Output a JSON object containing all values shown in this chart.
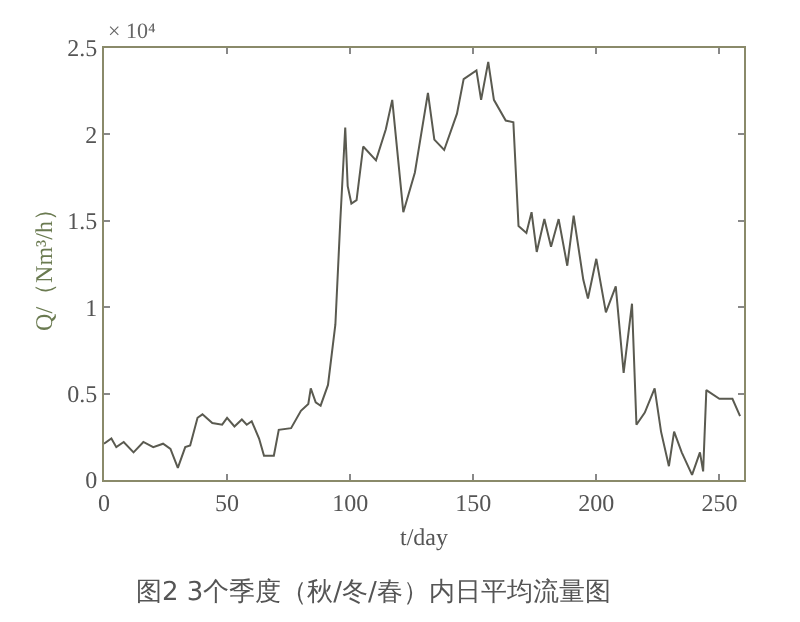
{
  "chart_data": {
    "type": "line",
    "title": "图2 3个季度（秋/冬/春）内日平均流量图",
    "xlabel": "t/day",
    "ylabel": "Q/（Nm³/h）",
    "annotations": [
      "× 10⁴"
    ],
    "xlim": [
      0,
      260
    ],
    "xticks": [
      0,
      50,
      100,
      150,
      200,
      250
    ],
    "ylim": [
      0,
      2.5
    ],
    "yticks": [
      0,
      0.5,
      1,
      1.5,
      2,
      2.5
    ],
    "marker": "none",
    "line_style": "solid",
    "series": [
      {
        "color": "#5a5a50",
        "x": [
          0,
          3,
          5,
          8,
          12,
          16,
          20,
          24,
          27,
          30,
          33,
          35,
          38,
          40,
          44,
          48,
          50,
          53,
          56,
          58,
          60,
          63,
          65,
          69,
          71,
          76,
          80,
          83,
          84,
          86,
          88,
          91,
          94,
          96,
          98,
          99,
          100.5,
          102.6,
          105.3,
          110.5,
          114.5,
          117.1,
          121.6,
          126.3,
          131.6,
          134.2,
          138.2,
          143.4,
          146.1,
          151.3,
          153.2,
          156.1,
          158.4,
          163.2,
          166.3,
          168.4,
          171.6,
          173.7,
          175.8,
          178.9,
          181.6,
          184.7,
          188.2,
          190.8,
          194.7,
          196.6,
          200,
          203.9,
          207.9,
          211.1,
          214.5,
          216.3,
          219.7,
          223.7,
          226.3,
          229.5,
          231.6,
          234.7,
          238.9,
          242.1,
          243.4,
          244.7,
          250,
          255.3,
          258.4
        ],
        "values": [
          0.21,
          0.24,
          0.19,
          0.22,
          0.16,
          0.22,
          0.19,
          0.21,
          0.18,
          0.07,
          0.19,
          0.2,
          0.36,
          0.38,
          0.33,
          0.32,
          0.36,
          0.31,
          0.35,
          0.32,
          0.34,
          0.24,
          0.14,
          0.14,
          0.29,
          0.3,
          0.4,
          0.44,
          0.53,
          0.45,
          0.43,
          0.55,
          0.9,
          1.5,
          2.04,
          1.7,
          1.6,
          1.62,
          1.93,
          1.85,
          2.03,
          2.2,
          1.55,
          1.78,
          2.24,
          1.97,
          1.91,
          2.12,
          2.32,
          2.37,
          2.2,
          2.42,
          2.2,
          2.08,
          2.07,
          1.47,
          1.43,
          1.55,
          1.32,
          1.51,
          1.35,
          1.51,
          1.24,
          1.53,
          1.16,
          1.05,
          1.28,
          0.97,
          1.12,
          0.62,
          1.02,
          0.32,
          0.39,
          0.53,
          0.28,
          0.08,
          0.28,
          0.16,
          0.03,
          0.16,
          0.05,
          0.52,
          0.47,
          0.47,
          0.37
        ]
      }
    ]
  }
}
